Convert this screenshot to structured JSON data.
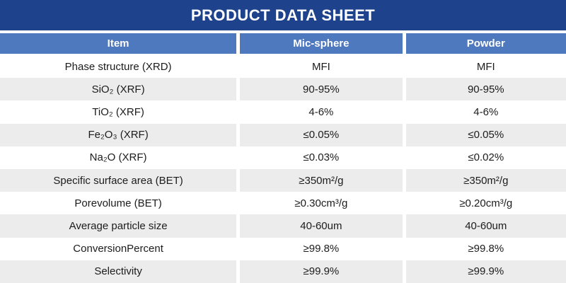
{
  "banner": {
    "title": "PRODUCT DATA SHEET"
  },
  "table": {
    "headers": [
      "Item",
      "Mic-sphere",
      "Powder"
    ],
    "rows": [
      {
        "item": "Phase structure (XRD)",
        "mic_sphere": "MFI",
        "powder": "MFI"
      },
      {
        "item": "SiO₂ (XRF)",
        "mic_sphere": "90-95%",
        "powder": "90-95%"
      },
      {
        "item": "TiO₂ (XRF)",
        "mic_sphere": "4-6%",
        "powder": "4-6%"
      },
      {
        "item": "Fe₂O₃ (XRF)",
        "mic_sphere": "≤0.05%",
        "powder": "≤0.05%"
      },
      {
        "item": "Na₂O (XRF)",
        "mic_sphere": "≤0.03%",
        "powder": "≤0.02%"
      },
      {
        "item": "Specific surface area (BET)",
        "mic_sphere": "≥350m²/g",
        "powder": "≥350m²/g"
      },
      {
        "item": "Porevolume (BET)",
        "mic_sphere": "≥0.30cm³/g",
        "powder": "≥0.20cm³/g"
      },
      {
        "item": "Average particle size",
        "mic_sphere": "40-60um",
        "powder": "40-60um"
      },
      {
        "item": "ConversionPercent",
        "mic_sphere": "≥99.8%",
        "powder": "≥99.8%"
      },
      {
        "item": "Selectivity",
        "mic_sphere": "≥99.9%",
        "powder": "≥99.9%"
      }
    ]
  },
  "colors": {
    "banner_bg": "#1E428C",
    "header_bg": "#4F79BE",
    "row_alt_bg": "#ECECEC",
    "text": "#1C1C1C"
  }
}
